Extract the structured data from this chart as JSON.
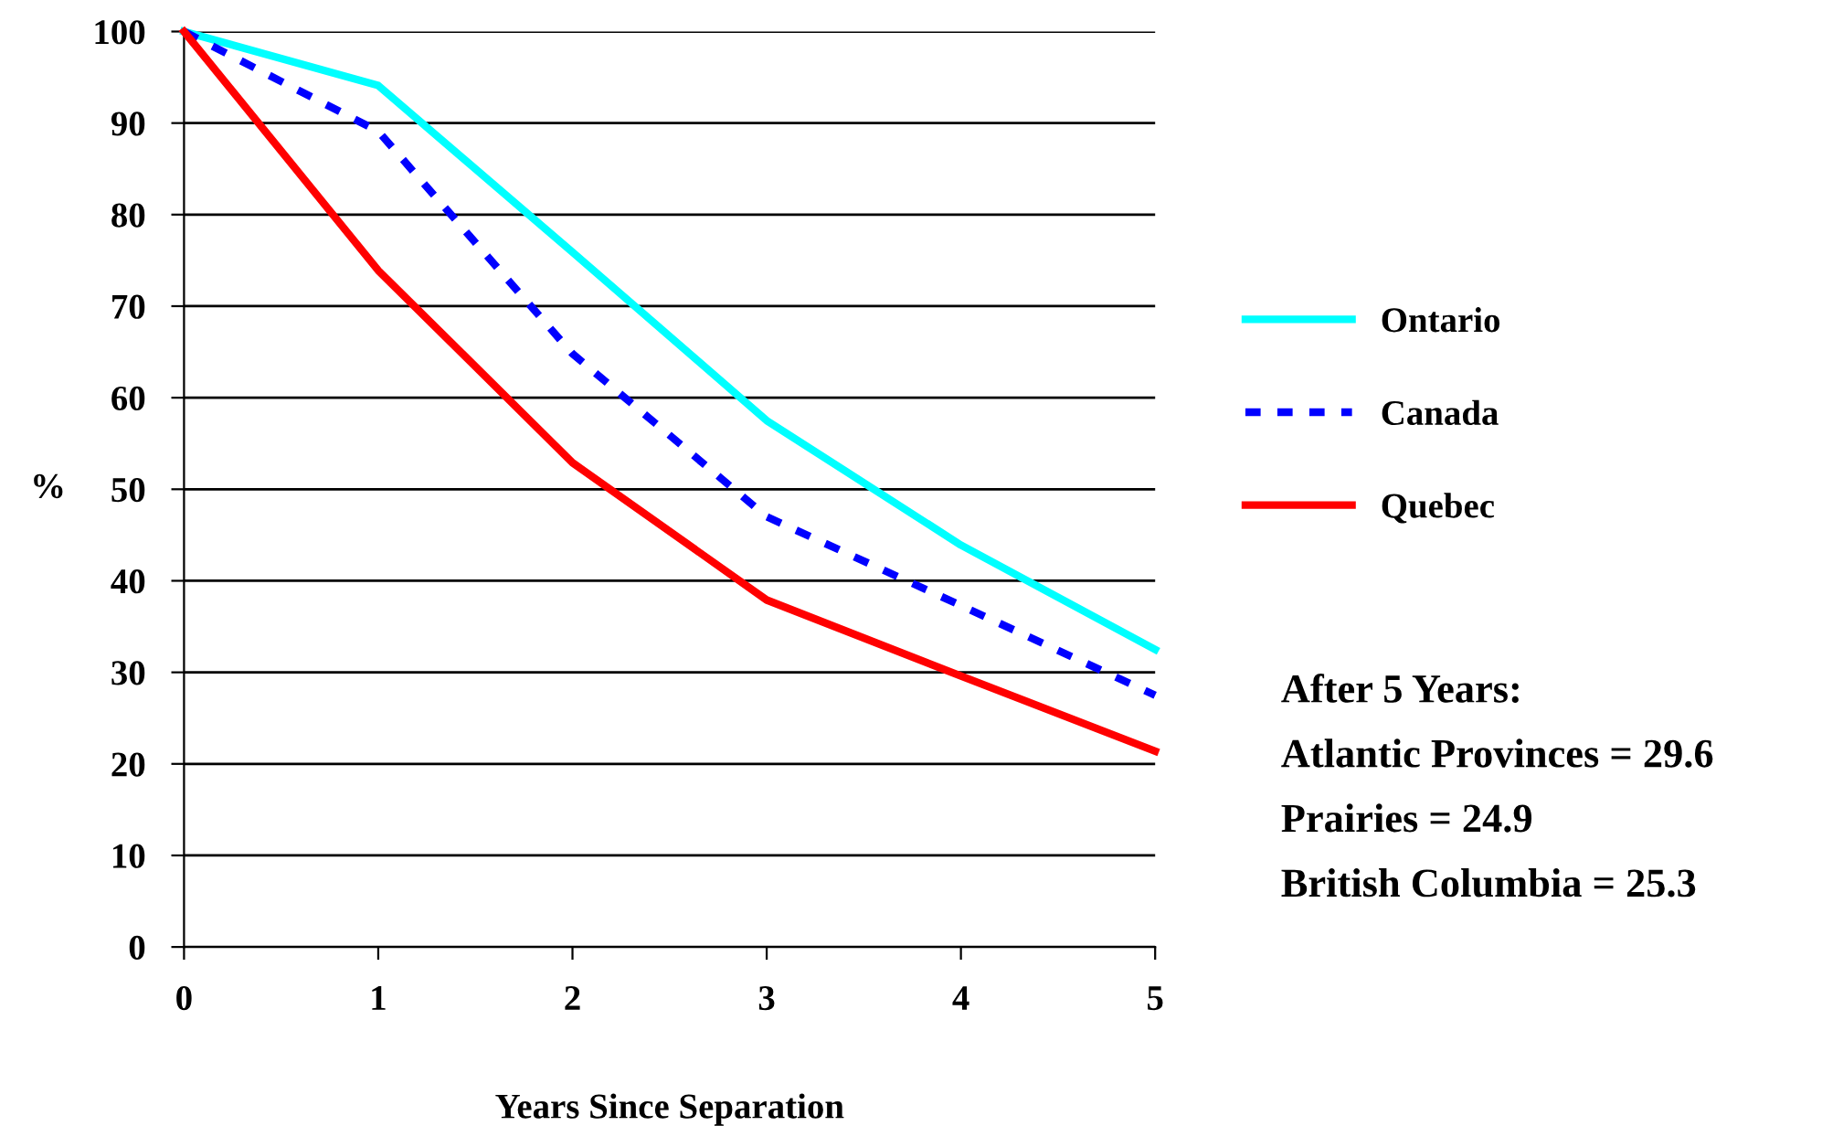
{
  "chart_data": {
    "type": "line",
    "xlabel": "Years Since Separation",
    "ylabel": "%",
    "x": [
      0,
      1,
      2,
      3,
      4,
      5
    ],
    "series": [
      {
        "name": "Ontario",
        "color": "#00ffff",
        "line_style": "solid",
        "values": [
          100,
          94.1,
          75.9,
          57.5,
          43.9,
          32.5
        ]
      },
      {
        "name": "Canada",
        "color": "#0000ff",
        "line_style": "dashed",
        "values": [
          100,
          89.1,
          64.8,
          47.0,
          37.3,
          27.5
        ]
      },
      {
        "name": "Quebec",
        "color": "#ff0000",
        "line_style": "solid",
        "values": [
          100,
          73.9,
          52.9,
          37.9,
          29.6,
          21.4
        ]
      }
    ],
    "xlim": [
      0,
      5
    ],
    "xticks": [
      0,
      1,
      2,
      3,
      4,
      5
    ],
    "ylim": [
      0,
      100
    ],
    "yticks": [
      0,
      10,
      20,
      30,
      40,
      50,
      60,
      70,
      80,
      90,
      100
    ],
    "grid": "y",
    "legend": "right",
    "marker": "none",
    "annotations": [
      "After 5 Years:",
      "Atlantic Provinces = 29.6",
      "Prairies = 24.9",
      "British Columbia = 25.3"
    ]
  }
}
